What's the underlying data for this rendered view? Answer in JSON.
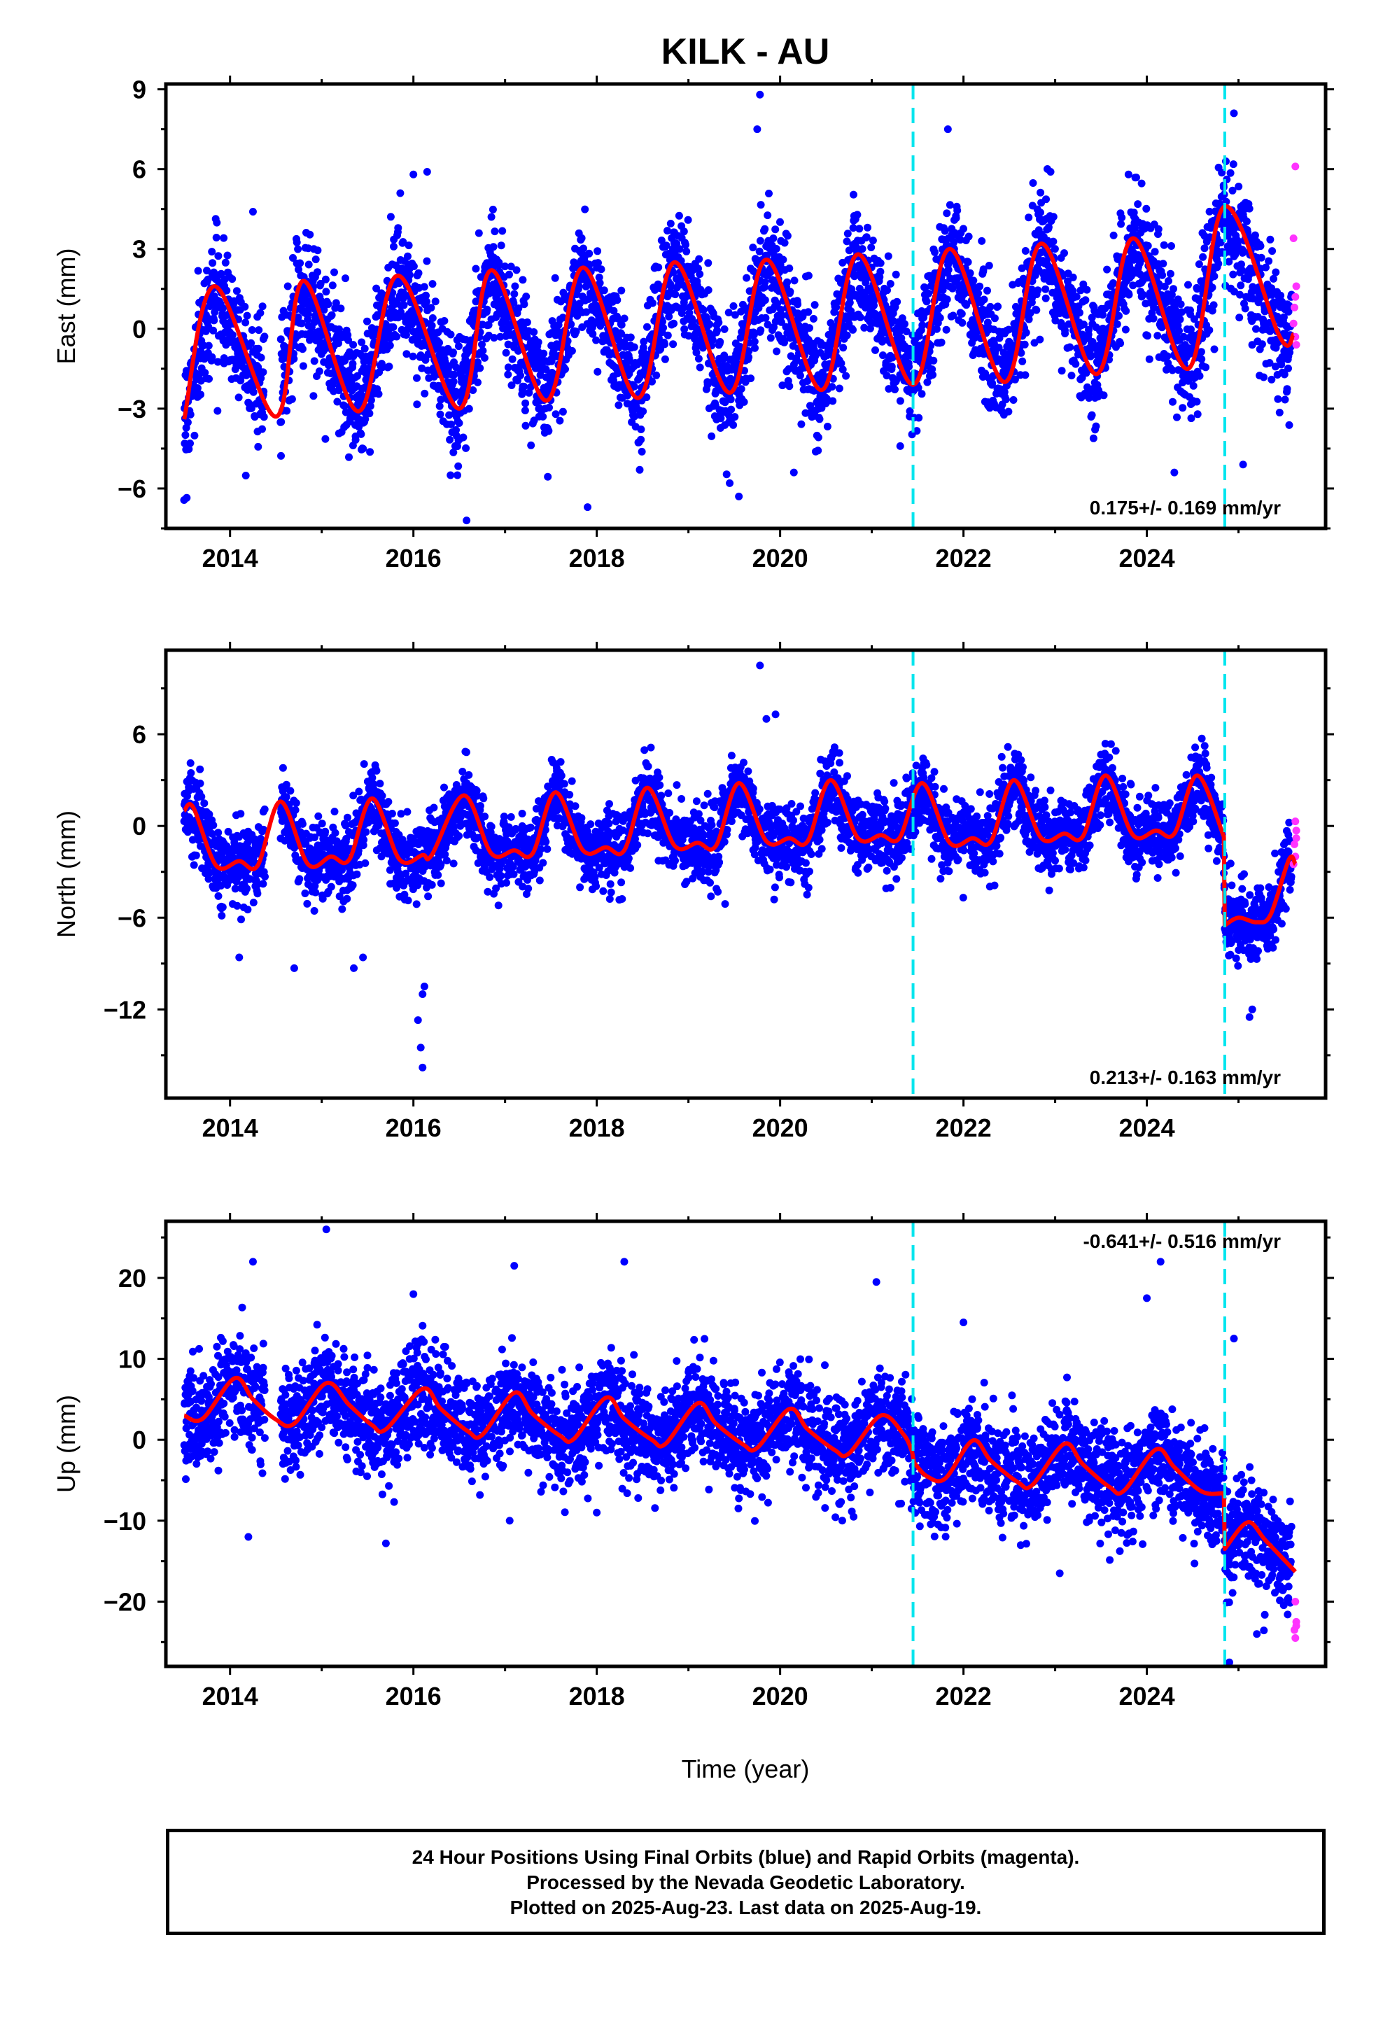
{
  "title": "KILK - AU",
  "xlabel": "Time (year)",
  "footer": {
    "line1": "24 Hour Positions Using Final Orbits (blue) and Rapid Orbits (magenta).",
    "line2": "Processed by the Nevada Geodetic Laboratory.",
    "line3": "Plotted on 2025-Aug-23. Last data on 2025-Aug-19."
  },
  "colors": {
    "final_orbits": "#0000ff",
    "rapid_orbits": "#ff33ff",
    "model_fit": "#ff0000",
    "equipment_change": "#00e5ee"
  },
  "chart_data": [
    {
      "type": "scatter",
      "component": "east",
      "ylabel": "East (mm)",
      "xlim": [
        2013.3,
        2025.95
      ],
      "ylim": [
        -7.5,
        9.2
      ],
      "x_ticks": [
        2014,
        2016,
        2018,
        2020,
        2022,
        2024
      ],
      "y_ticks": [
        -6,
        -3,
        0,
        3,
        6,
        9
      ],
      "rate_label": "0.175+/- 0.169 mm/yr",
      "rate_label_position": "bottom-right",
      "dashed_lines_x": [
        2021.45,
        2024.85
      ],
      "series": [
        {
          "name": "model",
          "offset": 0.0,
          "trend": 0.175,
          "t0": 2019.5,
          "annual_sin": 0.9,
          "annual_cos": -2.4,
          "semiannual_sin": 0.25,
          "semiannual_cos": 0.1,
          "steps": [
            {
              "x": 2024.85,
              "dy": 1.2
            }
          ],
          "line_points": [
            [
              2013.5,
              -3.4
            ],
            [
              2013.83,
              1.6
            ],
            [
              2014.5,
              -3.3
            ],
            [
              2014.8,
              1.8
            ],
            [
              2015.4,
              -3.1
            ],
            [
              2015.83,
              2.0
            ],
            [
              2016.5,
              -3.0
            ],
            [
              2016.85,
              2.2
            ],
            [
              2017.45,
              -2.7
            ],
            [
              2017.85,
              2.3
            ],
            [
              2018.45,
              -2.6
            ],
            [
              2018.85,
              2.5
            ],
            [
              2019.45,
              -2.4
            ],
            [
              2019.85,
              2.6
            ],
            [
              2020.45,
              -2.3
            ],
            [
              2020.85,
              2.8
            ],
            [
              2021.45,
              -2.1
            ],
            [
              2021.85,
              3.0
            ],
            [
              2022.45,
              -2.0
            ],
            [
              2022.85,
              3.2
            ],
            [
              2023.45,
              -1.7
            ],
            [
              2023.85,
              3.4
            ],
            [
              2024.45,
              -1.5
            ],
            [
              2024.85,
              4.6
            ],
            [
              2025.45,
              -0.3
            ],
            [
              2025.6,
              -0.2
            ]
          ]
        }
      ],
      "points": {
        "count_estimate": 4300,
        "scatter_sd": 1.1,
        "outliers": [
          [
            2019.78,
            8.8
          ],
          [
            2019.75,
            7.5
          ],
          [
            2021.83,
            7.5
          ],
          [
            2024.95,
            8.1
          ],
          [
            2016.58,
            -7.2
          ],
          [
            2017.9,
            -6.7
          ],
          [
            2019.55,
            -6.3
          ],
          [
            2016.48,
            -5.5
          ],
          [
            2019.45,
            -5.8
          ],
          [
            2025.05,
            -5.1
          ],
          [
            2024.3,
            -5.4
          ],
          [
            2020.15,
            -5.4
          ],
          [
            2016.0,
            5.8
          ],
          [
            2016.15,
            5.9
          ],
          [
            2022.95,
            5.9
          ],
          [
            2023.8,
            5.8
          ],
          [
            2014.25,
            4.4
          ]
        ],
        "rapid": [
          [
            2025.62,
            6.1
          ],
          [
            2025.6,
            3.4
          ],
          [
            2025.63,
            1.6
          ],
          [
            2025.61,
            0.8
          ],
          [
            2025.62,
            -0.3
          ],
          [
            2025.63,
            -0.6
          ],
          [
            2025.62,
            1.2
          ],
          [
            2025.6,
            0.2
          ]
        ]
      }
    },
    {
      "type": "scatter",
      "component": "north",
      "ylabel": "North (mm)",
      "xlim": [
        2013.3,
        2025.95
      ],
      "ylim": [
        -17.8,
        11.5
      ],
      "x_ticks": [
        2014,
        2016,
        2018,
        2020,
        2022,
        2024
      ],
      "y_ticks": [
        -12,
        -6,
        0,
        6
      ],
      "rate_label": "0.213+/- 0.163 mm/yr",
      "rate_label_position": "bottom-right",
      "dashed_lines_x": [
        2021.45,
        2024.85
      ],
      "series": [
        {
          "name": "model",
          "line_points": [
            [
              2013.5,
              1.0
            ],
            [
              2013.6,
              1.2
            ],
            [
              2013.85,
              -2.6
            ],
            [
              2014.1,
              -2.3
            ],
            [
              2014.3,
              -2.6
            ],
            [
              2014.55,
              1.6
            ],
            [
              2014.85,
              -2.5
            ],
            [
              2015.1,
              -2.0
            ],
            [
              2015.3,
              -2.2
            ],
            [
              2015.55,
              1.8
            ],
            [
              2015.85,
              -2.2
            ],
            [
              2016.1,
              -1.9
            ],
            [
              2016.2,
              -1.9
            ],
            [
              2016.55,
              2.0
            ],
            [
              2016.85,
              -1.8
            ],
            [
              2017.1,
              -1.6
            ],
            [
              2017.3,
              -1.8
            ],
            [
              2017.55,
              2.2
            ],
            [
              2017.85,
              -1.6
            ],
            [
              2018.1,
              -1.4
            ],
            [
              2018.3,
              -1.6
            ],
            [
              2018.55,
              2.5
            ],
            [
              2018.85,
              -1.3
            ],
            [
              2019.1,
              -1.1
            ],
            [
              2019.3,
              -1.3
            ],
            [
              2019.55,
              2.8
            ],
            [
              2019.85,
              -1.0
            ],
            [
              2020.1,
              -0.8
            ],
            [
              2020.3,
              -1.0
            ],
            [
              2020.55,
              3.0
            ],
            [
              2020.85,
              -0.8
            ],
            [
              2021.1,
              -0.6
            ],
            [
              2021.3,
              -0.8
            ],
            [
              2021.55,
              2.8
            ],
            [
              2021.85,
              -1.1
            ],
            [
              2022.1,
              -0.8
            ],
            [
              2022.3,
              -1.0
            ],
            [
              2022.55,
              3.0
            ],
            [
              2022.85,
              -0.8
            ],
            [
              2023.1,
              -0.5
            ],
            [
              2023.3,
              -0.7
            ],
            [
              2023.55,
              3.3
            ],
            [
              2023.85,
              -0.6
            ],
            [
              2024.1,
              -0.3
            ],
            [
              2024.3,
              -0.5
            ],
            [
              2024.55,
              3.3
            ],
            [
              2024.84,
              -0.7
            ],
            [
              2024.85,
              -6.5
            ],
            [
              2025.0,
              -6.0
            ],
            [
              2025.2,
              -6.3
            ],
            [
              2025.35,
              -5.8
            ],
            [
              2025.55,
              -2.2
            ],
            [
              2025.62,
              -2.5
            ]
          ]
        }
      ],
      "points": {
        "count_estimate": 4300,
        "scatter_sd": 1.2,
        "outliers": [
          [
            2019.78,
            10.5
          ],
          [
            2019.95,
            7.3
          ],
          [
            2019.85,
            7.0
          ],
          [
            2019.4,
            -5.1
          ],
          [
            2016.05,
            -12.7
          ],
          [
            2016.1,
            -11.0
          ],
          [
            2016.12,
            -10.5
          ],
          [
            2016.1,
            -15.8
          ],
          [
            2016.08,
            -14.5
          ],
          [
            2025.12,
            -12.5
          ],
          [
            2025.15,
            -12.0
          ],
          [
            2014.7,
            -9.3
          ],
          [
            2015.35,
            -9.3
          ],
          [
            2014.1,
            -8.6
          ],
          [
            2015.45,
            -8.6
          ]
        ],
        "rapid": [
          [
            2025.62,
            0.3
          ],
          [
            2025.63,
            -0.3
          ],
          [
            2025.61,
            -1.2
          ],
          [
            2025.62,
            -2.0
          ],
          [
            2025.6,
            -2.5
          ],
          [
            2025.63,
            -0.8
          ]
        ]
      }
    },
    {
      "type": "scatter",
      "component": "up",
      "ylabel": "Up (mm)",
      "xlim": [
        2013.3,
        2025.95
      ],
      "ylim": [
        -28,
        27
      ],
      "x_ticks": [
        2014,
        2016,
        2018,
        2020,
        2022,
        2024
      ],
      "y_ticks": [
        -20,
        -10,
        0,
        10,
        20
      ],
      "rate_label": "-0.641+/- 0.516 mm/yr",
      "rate_label_position": "top-right",
      "dashed_lines_x": [
        2021.45,
        2024.85
      ],
      "series": [
        {
          "name": "model",
          "line_points": [
            [
              2013.5,
              3.0
            ],
            [
              2013.7,
              2.6
            ],
            [
              2014.05,
              7.6
            ],
            [
              2014.25,
              5.0
            ],
            [
              2014.5,
              2.5
            ],
            [
              2014.7,
              2.0
            ],
            [
              2015.05,
              7.0
            ],
            [
              2015.3,
              4.3
            ],
            [
              2015.55,
              1.8
            ],
            [
              2015.7,
              1.3
            ],
            [
              2016.1,
              6.3
            ],
            [
              2016.3,
              3.8
            ],
            [
              2016.6,
              1.0
            ],
            [
              2016.75,
              0.6
            ],
            [
              2017.1,
              5.8
            ],
            [
              2017.3,
              3.2
            ],
            [
              2017.6,
              0.5
            ],
            [
              2017.75,
              0.1
            ],
            [
              2018.1,
              5.2
            ],
            [
              2018.3,
              2.6
            ],
            [
              2018.6,
              0.0
            ],
            [
              2018.75,
              -0.5
            ],
            [
              2019.1,
              4.5
            ],
            [
              2019.3,
              2.0
            ],
            [
              2019.6,
              -0.6
            ],
            [
              2019.75,
              -1.0
            ],
            [
              2020.1,
              3.8
            ],
            [
              2020.3,
              1.3
            ],
            [
              2020.6,
              -1.3
            ],
            [
              2020.75,
              -1.7
            ],
            [
              2021.1,
              3.0
            ],
            [
              2021.35,
              0.6
            ],
            [
              2021.44,
              -1.5
            ],
            [
              2021.46,
              -2.8
            ],
            [
              2021.6,
              -4.5
            ],
            [
              2021.8,
              -4.8
            ],
            [
              2022.1,
              -0.1
            ],
            [
              2022.3,
              -2.6
            ],
            [
              2022.6,
              -5.3
            ],
            [
              2022.75,
              -5.6
            ],
            [
              2023.1,
              -0.5
            ],
            [
              2023.3,
              -3.0
            ],
            [
              2023.6,
              -5.9
            ],
            [
              2023.75,
              -6.3
            ],
            [
              2024.1,
              -1.2
            ],
            [
              2024.3,
              -3.4
            ],
            [
              2024.6,
              -6.4
            ],
            [
              2024.84,
              -6.6
            ],
            [
              2024.85,
              -13.5
            ],
            [
              2025.1,
              -10.2
            ],
            [
              2025.3,
              -12.5
            ],
            [
              2025.62,
              -16.3
            ]
          ]
        }
      ],
      "points": {
        "count_estimate": 4300,
        "scatter_sd": 3.1,
        "outliers": [
          [
            2015.05,
            26.0
          ],
          [
            2014.25,
            22.0
          ],
          [
            2017.1,
            21.5
          ],
          [
            2018.3,
            22.0
          ],
          [
            2024.15,
            22.0
          ],
          [
            2021.05,
            19.5
          ],
          [
            2024.0,
            17.5
          ],
          [
            2016.0,
            18.0
          ],
          [
            2014.2,
            -12.0
          ],
          [
            2015.7,
            -12.8
          ],
          [
            2017.05,
            -10.0
          ],
          [
            2018.0,
            -9.0
          ],
          [
            2023.05,
            -16.5
          ],
          [
            2024.9,
            -27.5
          ],
          [
            2025.2,
            -24.0
          ],
          [
            2024.95,
            12.5
          ],
          [
            2022.0,
            14.5
          ]
        ],
        "rapid": [
          [
            2025.62,
            -20.0
          ],
          [
            2025.63,
            -22.5
          ],
          [
            2025.61,
            -23.5
          ],
          [
            2025.62,
            -24.5
          ],
          [
            2025.63,
            -23.0
          ]
        ]
      }
    }
  ]
}
